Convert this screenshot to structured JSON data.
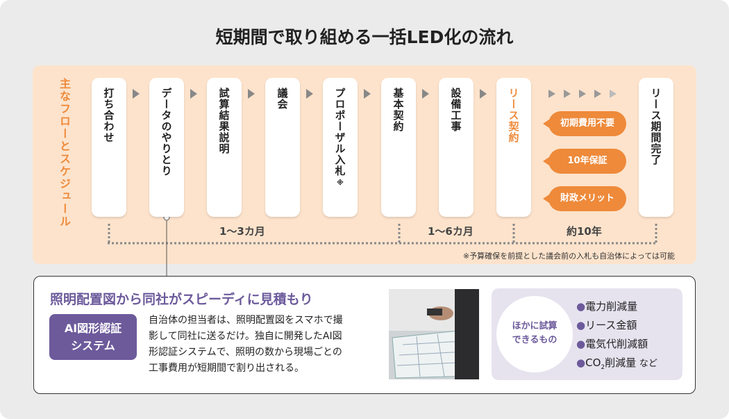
{
  "header": {
    "title": "短期間で取り組める一括LED化の流れ"
  },
  "flow": {
    "label": "主なフローとスケジュール",
    "steps": [
      {
        "label": "打ち合わせ"
      },
      {
        "label": "データのやりとり"
      },
      {
        "label": "試算結果説明"
      },
      {
        "label": "議会"
      },
      {
        "label": "プロポーザル入札",
        "mark": "※"
      },
      {
        "label": "基本契約"
      },
      {
        "label": "設備工事"
      },
      {
        "label": "リース契約"
      },
      {
        "label": "リース期間完了"
      }
    ],
    "badges": [
      "初期費用不要",
      "10年保証",
      "財政メリット"
    ],
    "durations": [
      "1～3カ月",
      "1～6カ月",
      "約10年"
    ],
    "note": "※予算確保を前提とした議会前の入札も自治体によっては可能"
  },
  "detail": {
    "heading": "照明配置図から同社がスピーディに見積もり",
    "tag": [
      "AI図形認証",
      "システム"
    ],
    "body": [
      "自治体の担当者は、照明配置図をスマホで撮",
      "影して同社に送るだけ。独自に開発したAI図",
      "形認証システムで、照明の数から現場ごとの",
      "工事費用が短期間で割り出される。"
    ],
    "others_label": [
      "ほかに試算",
      "できるもの"
    ],
    "others": [
      "電力削減量",
      "リース金額",
      "電気代削減額"
    ],
    "co2_item": {
      "prefix": "CO",
      "sub": "2",
      "text": "削減量",
      "suffix": "など"
    }
  }
}
